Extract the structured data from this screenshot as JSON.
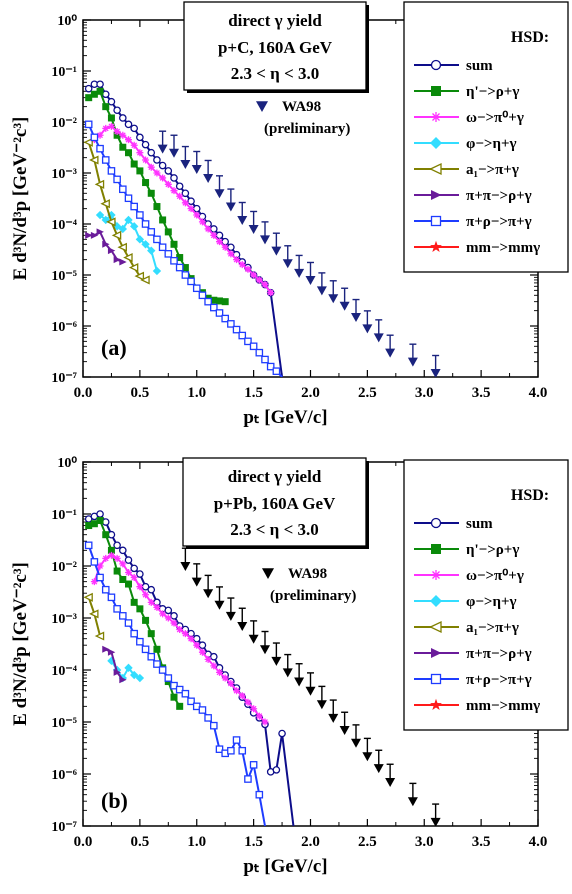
{
  "panels": [
    {
      "id": "a",
      "panel_label": "(a)",
      "header": {
        "line1": "direct γ yield",
        "line2": "p+C,  160A GeV",
        "line3": "2.3 < η < 3.0"
      },
      "wa98_label": "WA98",
      "wa98_sub": "(preliminary)",
      "wa98_color": "#1a237e"
    },
    {
      "id": "b",
      "panel_label": "(b)",
      "header": {
        "line1": "direct γ yield",
        "line2": "p+Pb,  160A GeV",
        "line3": "2.3 < η < 3.0"
      },
      "wa98_label": "WA98",
      "wa98_sub": "(preliminary)",
      "wa98_color": "#000000"
    }
  ],
  "legend": {
    "title": "HSD:",
    "items": [
      {
        "label": "sum",
        "color": "#0d0d8a",
        "marker": "circle-open"
      },
      {
        "label": "η'−>ρ+γ",
        "color": "#0a8a0a",
        "marker": "square-filled"
      },
      {
        "label": "ω−>π⁰+γ",
        "color": "#ff33ff",
        "marker": "asterisk"
      },
      {
        "label": "φ−>η+γ",
        "color": "#33ddff",
        "marker": "diamond-filled"
      },
      {
        "label": "a₁−>π+γ",
        "color": "#808000",
        "marker": "triangle-left-open"
      },
      {
        "label": "π+π−>ρ+γ",
        "color": "#6a1b9a",
        "marker": "triangle-right-filled"
      },
      {
        "label": "π+ρ−>π+γ",
        "color": "#1e3cff",
        "marker": "square-open"
      },
      {
        "label": "mm−>mmγ",
        "color": "#ff1a1a",
        "marker": "star"
      }
    ]
  },
  "axes": {
    "xlabel": "pₜ [GeV/c]",
    "ylabel": "E d³N/d³p  [GeV⁻²c³]",
    "xticks": [
      "0.0",
      "0.5",
      "1.0",
      "1.5",
      "2.0",
      "2.5",
      "3.0",
      "3.5",
      "4.0"
    ],
    "yticks": [
      "10⁰",
      "10⁻¹",
      "10⁻²",
      "10⁻³",
      "10⁻⁴",
      "10⁻⁵",
      "10⁻⁶",
      "10⁻⁷"
    ]
  },
  "chart_data": [
    {
      "type": "line",
      "xlim": [
        0,
        4
      ],
      "ylim": [
        1e-07,
        1
      ],
      "yscale": "log",
      "series": [
        {
          "name": "sum",
          "x": [
            0.05,
            0.1,
            0.15,
            0.2,
            0.25,
            0.3,
            0.35,
            0.4,
            0.45,
            0.5,
            0.55,
            0.6,
            0.65,
            0.7,
            0.75,
            0.8,
            0.85,
            0.9,
            0.95,
            1.0,
            1.05,
            1.1,
            1.15,
            1.2,
            1.25,
            1.3,
            1.35,
            1.4,
            1.45,
            1.5,
            1.55,
            1.6,
            1.65,
            1.75
          ],
          "y": [
            0.045,
            0.055,
            0.055,
            0.035,
            0.025,
            0.017,
            0.012,
            0.009,
            0.0075,
            0.005,
            0.0036,
            0.0025,
            0.0018,
            0.0014,
            0.0011,
            0.0008,
            0.00055,
            0.0004,
            0.00028,
            0.0002,
            0.00014,
            0.0001,
            8e-05,
            6e-05,
            4.5e-05,
            3.5e-05,
            2.5e-05,
            1.8e-05,
            1.4e-05,
            1e-05,
            8e-06,
            6.5e-06,
            4.5e-06,
            1e-07
          ]
        },
        {
          "name": "η'−>ρ+γ",
          "x": [
            0.05,
            0.1,
            0.15,
            0.2,
            0.25,
            0.3,
            0.35,
            0.4,
            0.45,
            0.5,
            0.55,
            0.6,
            0.65,
            0.7,
            0.75,
            0.8,
            0.85,
            0.9,
            0.95,
            1.0,
            1.05,
            1.1,
            1.15,
            1.2,
            1.25
          ],
          "y": [
            0.03,
            0.035,
            0.04,
            0.02,
            0.012,
            0.0055,
            0.0032,
            0.0025,
            0.0015,
            0.0011,
            0.00065,
            0.0004,
            0.00022,
            0.00012,
            7e-05,
            4e-05,
            2.2e-05,
            1.4e-05,
            8.5e-06,
            5.5e-06,
            4.5e-06,
            3.5e-06,
            3.2e-06,
            3.1e-06,
            3e-06
          ]
        },
        {
          "name": "ω−>π⁰+γ",
          "x": [
            0.1,
            0.15,
            0.2,
            0.25,
            0.3,
            0.35,
            0.4,
            0.45,
            0.5,
            0.55,
            0.6,
            0.65,
            0.7,
            0.75,
            0.8,
            0.85,
            0.9,
            0.95,
            1.0,
            1.05,
            1.1,
            1.15,
            1.2,
            1.25,
            1.3,
            1.35,
            1.4,
            1.45,
            1.5,
            1.55,
            1.6,
            1.65
          ],
          "y": [
            0.0045,
            0.0055,
            0.0075,
            0.0082,
            0.0065,
            0.0055,
            0.0045,
            0.0035,
            0.0025,
            0.0018,
            0.0013,
            0.001,
            0.0008,
            0.0006,
            0.00045,
            0.00035,
            0.00026,
            0.0002,
            0.00015,
            0.00011,
            8e-05,
            6e-05,
            4.5e-05,
            3.5e-05,
            2.6e-05,
            2e-05,
            1.6e-05,
            1.3e-05,
            1e-05,
            8e-06,
            6.5e-06,
            4.5e-06
          ]
        },
        {
          "name": "φ−>η+γ",
          "x": [
            0.15,
            0.2,
            0.25,
            0.3,
            0.35,
            0.4,
            0.45,
            0.5,
            0.55,
            0.6,
            0.65
          ],
          "y": [
            0.00015,
            0.00012,
            0.00015,
            9e-05,
            8e-05,
            0.00012,
            9e-05,
            5e-05,
            4e-05,
            3e-05,
            1.2e-05
          ]
        },
        {
          "name": "π+π−>ρ+γ",
          "x": [
            0.05,
            0.1,
            0.15,
            0.2,
            0.25,
            0.3,
            0.35,
            0.4,
            0.45,
            0.5,
            0.55
          ],
          "y": [
            0.004,
            0.0018,
            0.0006,
            0.00025,
            0.00011,
            6e-05,
            3.5e-05,
            2.2e-05,
            1.4e-05,
            9.5e-06,
            8e-06
          ]
        },
        {
          "name": "π+ρ−>π+γ",
          "x": [
            0.05,
            0.1,
            0.15,
            0.2,
            0.25,
            0.3,
            0.35
          ],
          "y": [
            6e-05,
            6e-05,
            7e-05,
            4e-05,
            3e-05,
            2e-05,
            1.8e-05
          ]
        },
        {
          "name": "mm−>mmγ",
          "x": [
            0.05,
            0.1,
            0.15,
            0.2,
            0.25,
            0.3,
            0.35,
            0.4,
            0.45,
            0.5,
            0.55,
            0.6,
            0.65,
            0.7,
            0.75,
            0.8,
            0.85,
            0.9,
            0.95,
            1.0,
            1.05,
            1.1,
            1.15,
            1.2,
            1.25,
            1.3,
            1.35,
            1.4,
            1.45,
            1.5,
            1.55,
            1.6,
            1.65,
            1.7,
            1.75
          ],
          "y": [
            0.009,
            0.005,
            0.003,
            0.0018,
            0.0011,
            0.00075,
            0.00048,
            0.00032,
            0.00022,
            0.00015,
            0.0001,
            7e-05,
            5e-05,
            3.5e-05,
            2.6e-05,
            1.9e-05,
            1.4e-05,
            1e-05,
            7.5e-06,
            5.5e-06,
            4e-06,
            3e-06,
            2.3e-06,
            1.8e-06,
            1.4e-06,
            1.1e-06,
            8.5e-07,
            6.5e-07,
            5e-07,
            4e-07,
            3e-07,
            2.2e-07,
            1.6e-07,
            1.3e-07,
            1e-07
          ]
        },
        {
          "name": "WA98",
          "x": [
            0.7,
            0.8,
            0.9,
            1.0,
            1.1,
            1.2,
            1.3,
            1.4,
            1.5,
            1.6,
            1.7,
            1.8,
            1.9,
            2.0,
            2.1,
            2.2,
            2.3,
            2.4,
            2.5,
            2.6,
            2.7,
            2.9,
            3.1
          ],
          "y": [
            0.003,
            0.0025,
            0.0015,
            0.0012,
            0.0008,
            0.0004,
            0.00022,
            0.00012,
            8e-05,
            5e-05,
            3e-05,
            1.7e-05,
            1.1e-05,
            8e-06,
            5e-06,
            3.5e-06,
            2.5e-06,
            1.5e-06,
            9e-07,
            6e-07,
            3e-07,
            2e-07,
            1.2e-07
          ]
        }
      ]
    },
    {
      "type": "line",
      "xlim": [
        0,
        4
      ],
      "ylim": [
        1e-07,
        1
      ],
      "yscale": "log",
      "series": [
        {
          "name": "sum",
          "x": [
            0.05,
            0.1,
            0.15,
            0.2,
            0.25,
            0.3,
            0.35,
            0.4,
            0.45,
            0.5,
            0.55,
            0.6,
            0.65,
            0.7,
            0.75,
            0.8,
            0.85,
            0.9,
            0.95,
            1.0,
            1.05,
            1.1,
            1.15,
            1.2,
            1.25,
            1.3,
            1.35,
            1.4,
            1.45,
            1.5,
            1.55,
            1.6,
            1.65,
            1.7,
            1.75,
            1.85
          ],
          "y": [
            0.08,
            0.09,
            0.1,
            0.07,
            0.04,
            0.025,
            0.02,
            0.013,
            0.009,
            0.007,
            0.004,
            0.0035,
            0.002,
            0.0015,
            0.0014,
            0.0011,
            0.0007,
            0.0006,
            0.0005,
            0.0004,
            0.0003,
            0.0002,
            0.00018,
            0.00011,
            8e-05,
            6e-05,
            4.5e-05,
            3e-05,
            2.2e-05,
            1.5e-05,
            1.2e-05,
            9e-06,
            1.1e-06,
            1.2e-06,
            6e-06,
            1e-07
          ]
        },
        {
          "name": "η'−>ρ+γ",
          "x": [
            0.05,
            0.1,
            0.15,
            0.2,
            0.25,
            0.3,
            0.35,
            0.4,
            0.45,
            0.5,
            0.55,
            0.6,
            0.65,
            0.7,
            0.75,
            0.8,
            0.85
          ],
          "y": [
            0.06,
            0.065,
            0.075,
            0.04,
            0.02,
            0.008,
            0.0055,
            0.0045,
            0.002,
            0.0015,
            0.0009,
            0.0005,
            0.00025,
            0.00011,
            6e-05,
            3e-05,
            2e-05
          ]
        },
        {
          "name": "ω−>π⁰+γ",
          "x": [
            0.1,
            0.15,
            0.2,
            0.25,
            0.3,
            0.35,
            0.4,
            0.45,
            0.5,
            0.55,
            0.6,
            0.65,
            0.7,
            0.75,
            0.8,
            0.85,
            0.9,
            0.95,
            1.0,
            1.05,
            1.1,
            1.15,
            1.2,
            1.25,
            1.3,
            1.35,
            1.4,
            1.45,
            1.5,
            1.55,
            1.6
          ],
          "y": [
            0.005,
            0.01,
            0.014,
            0.016,
            0.014,
            0.011,
            0.0075,
            0.006,
            0.004,
            0.0028,
            0.002,
            0.0016,
            0.0012,
            0.001,
            0.0008,
            0.0006,
            0.0005,
            0.0004,
            0.0003,
            0.00022,
            0.00016,
            0.00012,
            9e-05,
            7e-05,
            5.5e-05,
            4e-05,
            3.2e-05,
            2.4e-05,
            1.8e-05,
            1.3e-05,
            1e-05
          ]
        },
        {
          "name": "φ−>η+γ",
          "x": [
            0.25,
            0.3,
            0.35,
            0.4,
            0.45,
            0.5
          ],
          "y": [
            0.00015,
            0.0001,
            7e-05,
            0.00011,
            8e-05,
            7e-05
          ]
        },
        {
          "name": "π+π−>ρ+γ",
          "x": [
            0.05,
            0.1,
            0.15
          ],
          "y": [
            0.0025,
            0.0012,
            0.00045
          ]
        },
        {
          "name": "π+ρ−>π+γ",
          "x": [
            0.2,
            0.25,
            0.3,
            0.35
          ],
          "y": [
            0.00025,
            0.00022,
            9e-05,
            6.5e-05
          ]
        },
        {
          "name": "mm−>mmγ",
          "x": [
            0.05,
            0.1,
            0.15,
            0.2,
            0.25,
            0.3,
            0.35,
            0.4,
            0.45,
            0.5,
            0.55,
            0.6,
            0.65,
            0.7,
            0.75,
            0.8,
            0.85,
            0.9,
            0.95,
            1.0,
            1.05,
            1.1,
            1.15,
            1.2,
            1.25,
            1.3,
            1.35,
            1.4,
            1.45,
            1.5,
            1.55,
            1.6
          ],
          "y": [
            0.025,
            0.012,
            0.006,
            0.0035,
            0.0025,
            0.0015,
            0.0011,
            0.0008,
            0.0005,
            0.00035,
            0.00025,
            0.00018,
            0.00013,
            0.0001,
            7e-05,
            5e-05,
            4.2e-05,
            3.5e-05,
            2.5e-05,
            2e-05,
            1.7e-05,
            1.2e-05,
            8.5e-06,
            3e-06,
            2.5e-06,
            2.8e-06,
            4.5e-06,
            2.8e-06,
            8e-07,
            1.5e-06,
            4e-07,
            1e-07
          ]
        },
        {
          "name": "WA98",
          "x": [
            0.9,
            1.0,
            1.1,
            1.2,
            1.3,
            1.4,
            1.5,
            1.6,
            1.7,
            1.8,
            1.9,
            2.0,
            2.1,
            2.2,
            2.3,
            2.4,
            2.5,
            2.6,
            2.7,
            2.9,
            3.1
          ],
          "y": [
            0.01,
            0.005,
            0.003,
            0.0018,
            0.0011,
            0.0007,
            0.0004,
            0.00025,
            0.00015,
            9e-05,
            6e-05,
            4e-05,
            2.2e-05,
            1.2e-05,
            7e-06,
            4e-06,
            2.2e-06,
            1.3e-06,
            7e-07,
            3e-07,
            1.2e-07
          ]
        }
      ]
    }
  ]
}
